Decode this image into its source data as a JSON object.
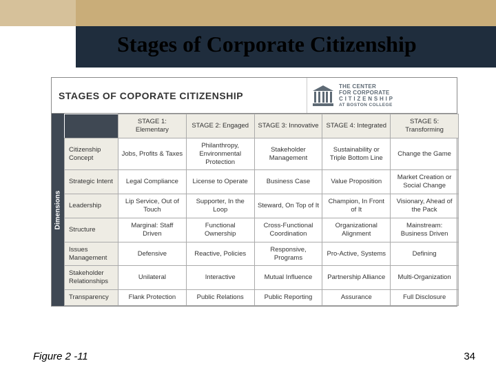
{
  "colors": {
    "topband": "#c9ad79",
    "topband_inner": "#d6c19a",
    "titlebar_bg": "#1f2d3d",
    "rail_bg": "#3f4853",
    "header_cell_bg": "#eeece4",
    "border": "#aaaaaa",
    "text": "#333333",
    "logo": "#5e6a75"
  },
  "slide": {
    "title": "Stages of Corporate Citizenship",
    "figure_label": "Figure 2 -11",
    "page_number": "34"
  },
  "figure": {
    "header_title": "STAGES OF COPORATE CITIZENSHIP",
    "center_logo": {
      "line1": "THE CENTER",
      "line2": "FOR CORPORATE",
      "line3": "C I T I Z E N S H I P",
      "line4": "AT BOSTON COLLEGE"
    },
    "rail_label": "Dimensions",
    "columns": [
      "STAGE 1: Elementary",
      "STAGE 2: Engaged",
      "STAGE 3: Innovative",
      "STAGE 4: Integrated",
      "STAGE 5: Transforming"
    ],
    "rows": [
      {
        "dim": "Citizenship Concept",
        "cells": [
          "Jobs, Profits & Taxes",
          "Philanthropy, Environmental Protection",
          "Stakeholder Management",
          "Sustainability or Triple Bottom Line",
          "Change the Game"
        ]
      },
      {
        "dim": "Strategic Intent",
        "cells": [
          "Legal Compliance",
          "License to Operate",
          "Business Case",
          "Value Proposition",
          "Market Creation or Social Change"
        ]
      },
      {
        "dim": "Leadership",
        "cells": [
          "Lip Service, Out of Touch",
          "Supporter, In the Loop",
          "Steward, On Top of It",
          "Champion, In Front of It",
          "Visionary, Ahead of the Pack"
        ]
      },
      {
        "dim": "Structure",
        "cells": [
          "Marginal: Staff Driven",
          "Functional Ownership",
          "Cross-Functional Coordination",
          "Organizational Alignment",
          "Mainstream: Business Driven"
        ]
      },
      {
        "dim": "Issues Management",
        "cells": [
          "Defensive",
          "Reactive, Policies",
          "Responsive, Programs",
          "Pro-Active, Systems",
          "Defining"
        ]
      },
      {
        "dim": "Stakeholder Relationships",
        "cells": [
          "Unilateral",
          "Interactive",
          "Mutual Influence",
          "Partnership Alliance",
          "Multi-Organization"
        ]
      },
      {
        "dim": "Transparency",
        "cells": [
          "Flank Protection",
          "Public Relations",
          "Public Reporting",
          "Assurance",
          "Full Disclosure"
        ]
      }
    ]
  }
}
